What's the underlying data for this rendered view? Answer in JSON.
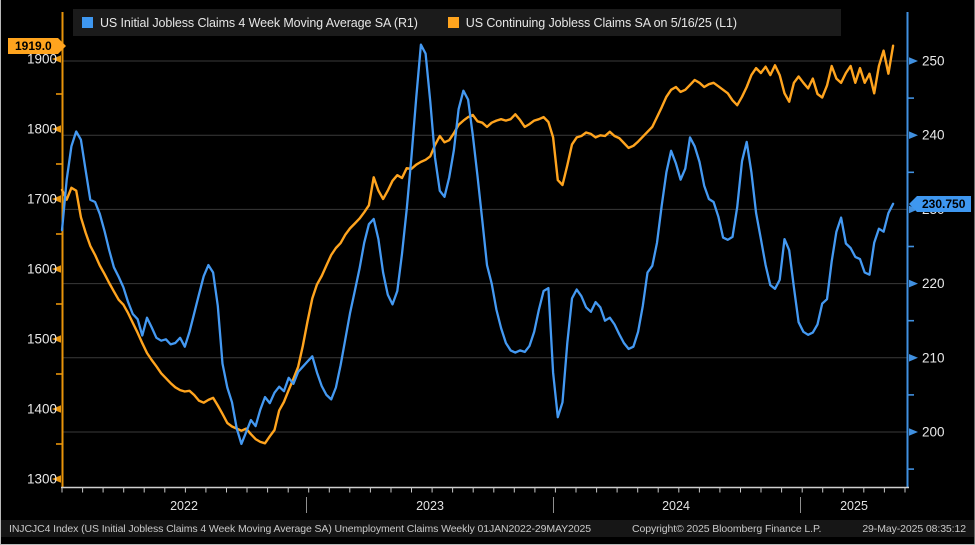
{
  "legend": {
    "series1": {
      "label": "US Initial Jobless Claims 4 Week Moving Average SA  (R1)",
      "color": "#3e97f0"
    },
    "series2": {
      "label": "US Continuing Jobless Claims SA  on 5/16/25 (L1)",
      "color": "#ffa41e"
    }
  },
  "axes": {
    "left": {
      "labels": [
        "1900",
        "1800",
        "1700",
        "1600",
        "1500",
        "1400",
        "1300"
      ],
      "last_value_label": "1919.0",
      "axis_color": "#e8940a",
      "label_color": "#e8e8e8"
    },
    "right": {
      "labels": [
        "250",
        "240",
        "230",
        "220",
        "210",
        "200"
      ],
      "last_value_label": "230.750",
      "axis_color": "#4090e0",
      "label_color": "#e8e8e8"
    },
    "x": {
      "years": [
        "2022",
        "2023",
        "2024",
        "2025"
      ]
    }
  },
  "footer": {
    "left": "INJCJC4 Index (US Initial Jobless Claims 4 Week Moving Average SA) Unemployment Claims  Weekly 01JAN2022-29MAY2025",
    "center": "Copyright© 2025 Bloomberg Finance L.P.",
    "right": "29-May-2025 08:35:12"
  },
  "chart_data": {
    "type": "line",
    "title": "",
    "x_unit": "weeks since 01JAN2022",
    "x_range_label": "01JAN2022-29MAY2025",
    "x_year_tick_labels": [
      "2022",
      "2023",
      "2024",
      "2025"
    ],
    "grid": "horizontal-only",
    "legend_position": "top",
    "left_axis_ticks": [
      1900,
      1800,
      1700,
      1600,
      1500,
      1400,
      1300
    ],
    "right_axis_ticks": [
      250,
      240,
      230,
      220,
      210,
      200
    ],
    "gridlines_right_axis": [
      250,
      240,
      230,
      220,
      210,
      200
    ],
    "series": [
      {
        "name": "US Initial Jobless Claims 4 Week Moving Average SA",
        "axis": "right",
        "color": "#4499f2",
        "units": "thousands",
        "last_value": 230.75,
        "values": [
          227.2,
          234,
          238.5,
          240.5,
          239.4,
          235.3,
          231.3,
          231.0,
          229.4,
          227.1,
          224.5,
          222.2,
          220.9,
          219.5,
          217.5,
          215.9,
          215.2,
          213.0,
          215.4,
          214.1,
          212.7,
          212.3,
          212.5,
          211.8,
          212.0,
          212.7,
          211.5,
          213.5,
          216.0,
          218.5,
          221.0,
          222.5,
          221.5,
          217.0,
          209.2,
          206.0,
          204.0,
          200.5,
          198.4,
          200.0,
          201.6,
          200.8,
          203.0,
          204.7,
          203.9,
          205.3,
          206.1,
          205.5,
          207.3,
          206.5,
          208.1,
          208.8,
          209.5,
          210.2,
          208.0,
          206.2,
          205.0,
          204.4,
          206.0,
          209.0,
          212.5,
          216.0,
          219.0,
          222.0,
          225.5,
          228.0,
          228.7,
          226.0,
          221.5,
          218.5,
          217.2,
          219.0,
          224.0,
          230.0,
          237.0,
          245.0,
          252.2,
          251.0,
          244.5,
          237.0,
          232.5,
          231.7,
          234.3,
          238.0,
          243.5,
          246.0,
          244.8,
          240.0,
          234.5,
          228.5,
          222.5,
          220.0,
          216.5,
          214.0,
          212.0,
          211.0,
          210.7,
          211.0,
          210.8,
          211.6,
          213.5,
          216.5,
          219.0,
          219.4,
          208.0,
          202.0,
          204.0,
          212.0,
          218.0,
          219.2,
          218.3,
          216.8,
          216.2,
          217.5,
          216.8,
          215.0,
          215.4,
          214.5,
          213.2,
          212.0,
          211.2,
          211.5,
          213.5,
          217.0,
          221.5,
          222.4,
          225.5,
          230.5,
          235.0,
          237.9,
          236.2,
          234.0,
          235.5,
          239.7,
          238.5,
          236.4,
          233.2,
          231.4,
          231.0,
          229.0,
          226.2,
          225.9,
          226.3,
          230.3,
          236.5,
          239.1,
          235.0,
          229.5,
          226.0,
          222.5,
          219.8,
          219.3,
          220.5,
          226.0,
          224.5,
          219.5,
          214.8,
          213.5,
          213.1,
          213.4,
          214.5,
          217.3,
          217.9,
          223.0,
          227.0,
          228.9,
          225.4,
          224.8,
          223.6,
          223.3,
          221.5,
          221.2,
          225.5,
          227.4,
          227.0,
          229.5,
          230.75
        ]
      },
      {
        "name": "US Continuing Jobless Claims SA",
        "axis": "left",
        "color": "#ffa41e",
        "units": "thousands",
        "last_value": 1919.0,
        "values": [
          1713,
          1699,
          1716,
          1712,
          1674,
          1652,
          1633,
          1620,
          1605,
          1593,
          1580,
          1568,
          1556,
          1549,
          1537,
          1523,
          1509,
          1494,
          1480,
          1470,
          1461,
          1451,
          1444,
          1437,
          1431,
          1427,
          1425,
          1426,
          1420,
          1412,
          1409,
          1413,
          1416,
          1405,
          1393,
          1380,
          1375,
          1372,
          1369,
          1372,
          1364,
          1357,
          1353,
          1351,
          1361,
          1370,
          1398,
          1410,
          1427,
          1443,
          1460,
          1490,
          1525,
          1558,
          1578,
          1590,
          1605,
          1620,
          1630,
          1637,
          1649,
          1658,
          1665,
          1672,
          1681,
          1691,
          1731,
          1712,
          1700,
          1712,
          1726,
          1734,
          1730,
          1744,
          1743,
          1749,
          1753,
          1756,
          1761,
          1777,
          1790,
          1781,
          1784,
          1794,
          1806,
          1812,
          1817,
          1820,
          1811,
          1809,
          1803,
          1809,
          1812,
          1814,
          1812,
          1814,
          1821,
          1813,
          1803,
          1807,
          1812,
          1814,
          1817,
          1810,
          1788,
          1727,
          1720,
          1748,
          1778,
          1788,
          1790,
          1795,
          1793,
          1788,
          1791,
          1790,
          1796,
          1790,
          1787,
          1780,
          1773,
          1776,
          1782,
          1789,
          1796,
          1803,
          1817,
          1831,
          1846,
          1856,
          1860,
          1853,
          1856,
          1863,
          1870,
          1866,
          1860,
          1864,
          1866,
          1861,
          1856,
          1851,
          1841,
          1834,
          1846,
          1860,
          1877,
          1887,
          1880,
          1889,
          1877,
          1891,
          1877,
          1851,
          1839,
          1866,
          1875,
          1866,
          1858,
          1872,
          1850,
          1845,
          1862,
          1890,
          1872,
          1866,
          1880,
          1890,
          1866,
          1887,
          1866,
          1879,
          1851,
          1890,
          1912,
          1879,
          1919
        ]
      }
    ]
  }
}
